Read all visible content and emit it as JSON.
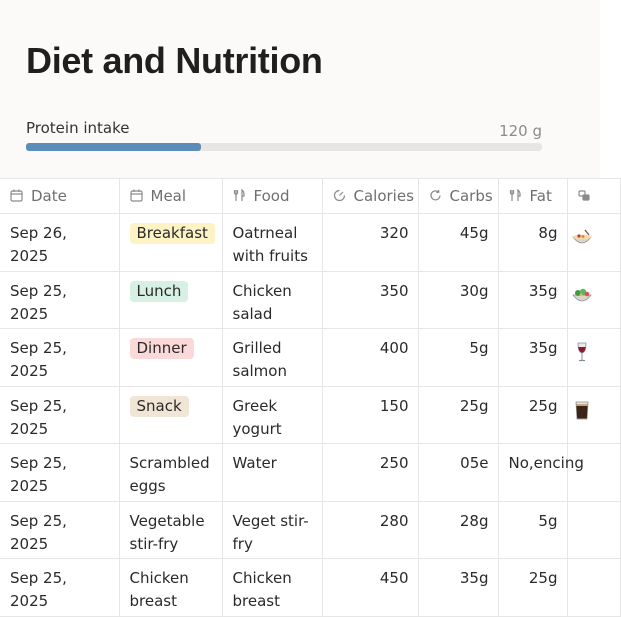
{
  "page": {
    "title": "Diet and Nutrition"
  },
  "progress": {
    "label": "Protein intake",
    "value_text": "120 g",
    "fraction": 0.34
  },
  "table": {
    "columns": [
      {
        "key": "date",
        "label": "Date",
        "icon": "calendar-icon"
      },
      {
        "key": "meal",
        "label": "Meal",
        "icon": "calendar-icon"
      },
      {
        "key": "food",
        "label": "Food",
        "icon": "fork-knife-icon"
      },
      {
        "key": "calories",
        "label": "Calories",
        "icon": "gauge-icon"
      },
      {
        "key": "carbs",
        "label": "Carbs",
        "icon": "refresh-icon"
      },
      {
        "key": "fat",
        "label": "Fat",
        "icon": "fork-knife-icon"
      },
      {
        "key": "image",
        "label": "",
        "icon": "image-icon"
      }
    ],
    "rows": [
      {
        "date": "Sep 26, 2025",
        "meal": "Breakfast",
        "meal_color": "#fdf3c4",
        "food": "Oatrneal with fruits",
        "calories": "320",
        "carbs": "45g",
        "fat": "8g",
        "image": "oatmeal-bowl-icon"
      },
      {
        "date": "Sep 25, 2025",
        "meal": "Lunch",
        "meal_color": "#d6f1e3",
        "food": "Chicken salad",
        "calories": "350",
        "carbs": "30g",
        "fat": "35g",
        "image": "salad-bowl-icon"
      },
      {
        "date": "Sep 25, 2025",
        "meal": "Dinner",
        "meal_color": "#fbd9d8",
        "food": "Grilled salmon",
        "calories": "400",
        "carbs": "5g",
        "fat": "35g",
        "image": "wine-glass-icon"
      },
      {
        "date": "Sep 25, 2025",
        "meal": "Snack",
        "meal_color": "#f1e5d5",
        "food": "Greek yogurt",
        "calories": "150",
        "carbs": "25g",
        "fat": "25g",
        "image": "coffee-glass-icon"
      },
      {
        "date": "Sep 25, 2025",
        "meal": "Scrambled eggs",
        "meal_color": "",
        "food": "Water",
        "calories": "250",
        "carbs": "05e",
        "fat": "No,encing",
        "image": ""
      },
      {
        "date": "Sep 25, 2025",
        "meal": "Vegetable stir-fry",
        "meal_color": "",
        "food": "Veget stir-fry",
        "calories": "280",
        "carbs": "28g",
        "fat": "5g",
        "image": ""
      },
      {
        "date": "Sep 25, 2025",
        "meal": "Chicken breast",
        "meal_color": "",
        "food": "Chicken breast",
        "calories": "450",
        "carbs": "35g",
        "fat": "25g",
        "image": ""
      }
    ]
  },
  "colors": {
    "accent": "#5b8db8",
    "track": "#e7e6e4"
  }
}
